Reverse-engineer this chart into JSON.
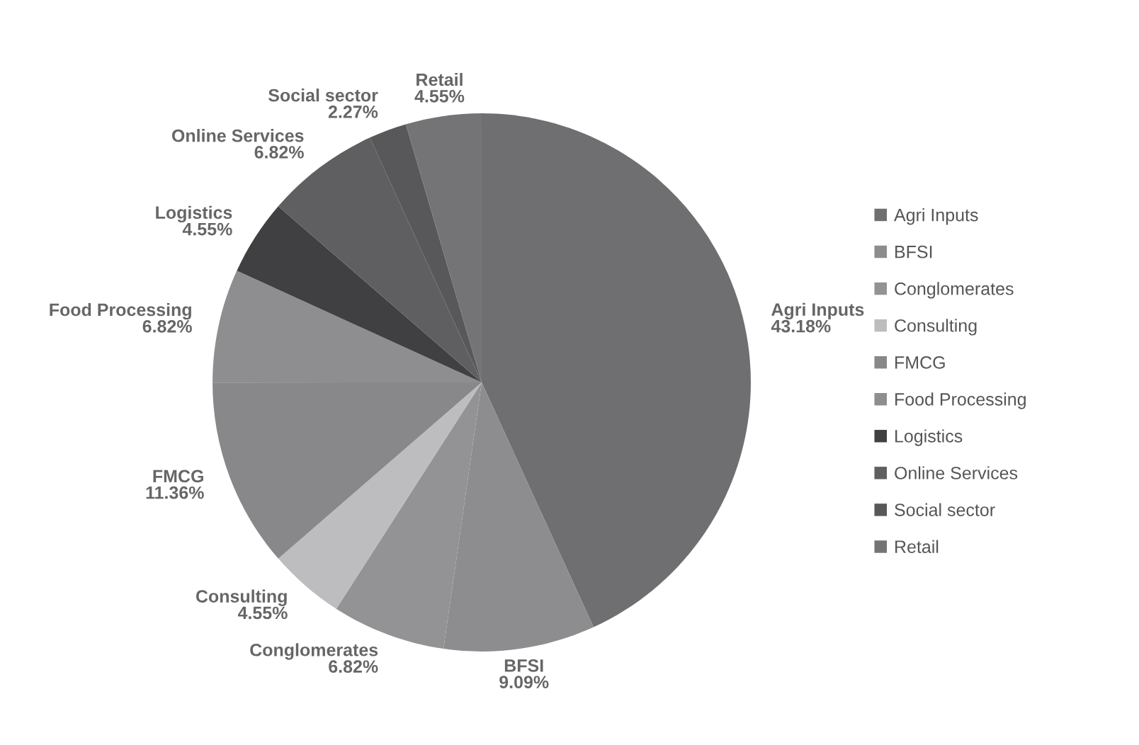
{
  "chart_data": {
    "type": "pie",
    "categories": [
      "Agri Inputs",
      "BFSI",
      "Conglomerates",
      "Consulting",
      "FMCG",
      "Food Processing",
      "Logistics",
      "Online Services",
      "Social sector",
      "Retail"
    ],
    "values": [
      43.18,
      9.09,
      6.82,
      4.55,
      11.36,
      6.82,
      4.55,
      6.82,
      2.27,
      4.55
    ],
    "colors": [
      "#6f6f71",
      "#8d8d8f",
      "#939395",
      "#bdbdbf",
      "#88888a",
      "#8e8e90",
      "#404042",
      "#5f5f61",
      "#58585a",
      "#747476"
    ],
    "value_labels": [
      "43.18%",
      "9.09%",
      "6.82%",
      "4.55%",
      "11.36%",
      "6.82%",
      "4.55%",
      "6.82%",
      "2.27%",
      "4.55%"
    ],
    "legend": "right"
  }
}
